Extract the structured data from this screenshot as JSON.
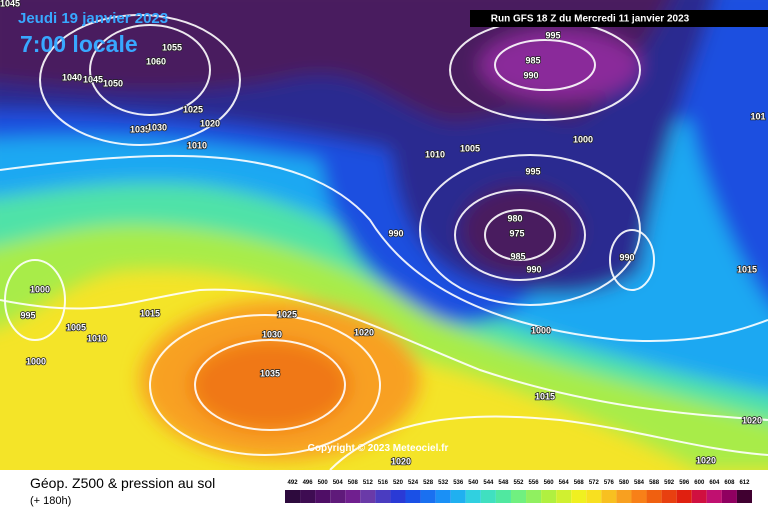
{
  "header": {
    "date": "Jeudi 19 janvier 2023",
    "time": "7:00 locale",
    "run": "Run GFS 18 Z du Mercredi 11 janvier 2023"
  },
  "isobar_labels": [
    "1045",
    "1055",
    "1060",
    "1040",
    "1045",
    "1050",
    "1035",
    "1030",
    "1025",
    "1020",
    "1010",
    "995",
    "985",
    "990",
    "1000",
    "1010",
    "1005",
    "995",
    "980",
    "975",
    "985",
    "990",
    "990",
    "990",
    "1000",
    "995",
    "1005",
    "1010",
    "1015",
    "1025",
    "1030",
    "1020",
    "1000",
    "1035",
    "1000",
    "1015",
    "1020",
    "1020",
    "1020",
    "1015",
    "101"
  ],
  "copyright": "Copyright © 2023 Meteociel.fr",
  "footer": {
    "title": "Géop. Z500 & pression au sol",
    "subtitle": "(+ 180h)"
  },
  "legend": {
    "levels": [
      492,
      496,
      500,
      504,
      508,
      512,
      516,
      520,
      524,
      528,
      532,
      536,
      540,
      544,
      548,
      552,
      556,
      560,
      564,
      568,
      572,
      576,
      580,
      584,
      588,
      592,
      596,
      600,
      604,
      608,
      612
    ],
    "colors": [
      "#2d0a3d",
      "#3e0c52",
      "#4f0e66",
      "#5f1a7a",
      "#701f8f",
      "#6a3aa8",
      "#4a3cc0",
      "#2a3ad6",
      "#1a50e6",
      "#1a70f0",
      "#1a90f6",
      "#20b0f0",
      "#30d0e0",
      "#40e0c0",
      "#50e8a0",
      "#70f080",
      "#90f060",
      "#b0f040",
      "#d0f030",
      "#f0f020",
      "#f8e020",
      "#f8c020",
      "#f8a020",
      "#f88018",
      "#f06010",
      "#e84010",
      "#e02010",
      "#d01040",
      "#c01070",
      "#900060",
      "#400030"
    ]
  }
}
